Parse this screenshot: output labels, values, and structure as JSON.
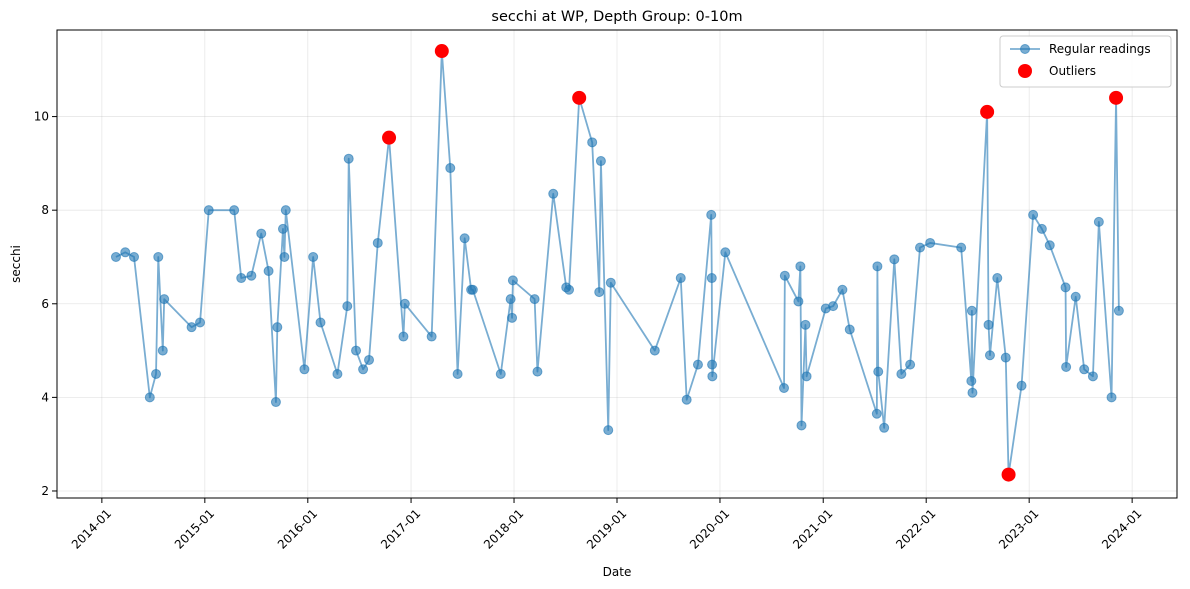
{
  "chart_data": {
    "type": "scatter",
    "title": "secchi at WP, Depth Group: 0-10m",
    "xlabel": "Date",
    "ylabel": "secchi",
    "xlim": [
      "2013-07-26",
      "2024-06-08"
    ],
    "ylim": [
      1.85,
      11.85
    ],
    "x_ticks": [
      "2014-01",
      "2015-01",
      "2016-01",
      "2017-01",
      "2018-01",
      "2019-01",
      "2020-01",
      "2021-01",
      "2022-01",
      "2023-01",
      "2024-01"
    ],
    "y_ticks": [
      2,
      4,
      6,
      8,
      10
    ],
    "grid": true,
    "legend": "top-right",
    "colors": {
      "regular": "#1f77b4",
      "outlier": "#ff0000"
    },
    "series": [
      {
        "name": "Regular readings",
        "style": "line-marker",
        "points": [
          [
            "2014-02-20",
            7.0
          ],
          [
            "2014-03-25",
            7.1
          ],
          [
            "2014-04-25",
            7.0
          ],
          [
            "2014-06-20",
            4.0
          ],
          [
            "2014-07-12",
            4.5
          ],
          [
            "2014-07-20",
            7.0
          ],
          [
            "2014-08-05",
            5.0
          ],
          [
            "2014-08-10",
            6.1
          ],
          [
            "2014-11-15",
            5.5
          ],
          [
            "2014-12-15",
            5.6
          ],
          [
            "2015-01-15",
            8.0
          ],
          [
            "2015-04-15",
            8.0
          ],
          [
            "2015-05-10",
            6.55
          ],
          [
            "2015-06-15",
            6.6
          ],
          [
            "2015-07-20",
            7.5
          ],
          [
            "2015-08-15",
            6.7
          ],
          [
            "2015-09-10",
            3.9
          ],
          [
            "2015-09-15",
            5.5
          ],
          [
            "2015-10-05",
            7.6
          ],
          [
            "2015-10-10",
            7.0
          ],
          [
            "2015-10-15",
            8.0
          ],
          [
            "2015-12-20",
            4.6
          ],
          [
            "2016-01-20",
            7.0
          ],
          [
            "2016-02-15",
            5.6
          ],
          [
            "2016-04-15",
            4.5
          ],
          [
            "2016-05-20",
            5.95
          ],
          [
            "2016-05-25",
            9.1
          ],
          [
            "2016-06-20",
            5.0
          ],
          [
            "2016-07-15",
            4.6
          ],
          [
            "2016-08-05",
            4.8
          ],
          [
            "2016-09-05",
            7.3
          ],
          [
            "2016-10-15",
            9.55
          ],
          [
            "2016-12-05",
            5.3
          ],
          [
            "2016-12-10",
            6.0
          ],
          [
            "2017-03-15",
            5.3
          ],
          [
            "2017-04-20",
            11.4
          ],
          [
            "2017-05-20",
            8.9
          ],
          [
            "2017-06-15",
            4.5
          ],
          [
            "2017-07-10",
            7.4
          ],
          [
            "2017-08-02",
            6.3
          ],
          [
            "2017-08-08",
            6.3
          ],
          [
            "2017-11-15",
            4.5
          ],
          [
            "2017-12-20",
            6.1
          ],
          [
            "2017-12-25",
            5.7
          ],
          [
            "2017-12-28",
            6.5
          ],
          [
            "2018-03-15",
            6.1
          ],
          [
            "2018-03-25",
            4.55
          ],
          [
            "2018-05-20",
            8.35
          ],
          [
            "2018-07-05",
            6.35
          ],
          [
            "2018-07-15",
            6.3
          ],
          [
            "2018-08-20",
            10.4
          ],
          [
            "2018-10-05",
            9.45
          ],
          [
            "2018-10-30",
            6.25
          ],
          [
            "2018-11-05",
            9.05
          ],
          [
            "2018-12-01",
            3.3
          ],
          [
            "2018-12-10",
            6.45
          ],
          [
            "2019-05-15",
            5.0
          ],
          [
            "2019-08-15",
            6.55
          ],
          [
            "2019-09-05",
            3.95
          ],
          [
            "2019-10-15",
            4.7
          ],
          [
            "2019-12-01",
            7.9
          ],
          [
            "2019-12-03",
            6.55
          ],
          [
            "2019-12-04",
            4.7
          ],
          [
            "2019-12-05",
            4.45
          ],
          [
            "2020-01-20",
            7.1
          ],
          [
            "2020-08-15",
            4.2
          ],
          [
            "2020-08-18",
            6.6
          ],
          [
            "2020-10-05",
            6.05
          ],
          [
            "2020-10-12",
            6.8
          ],
          [
            "2020-10-16",
            3.4
          ],
          [
            "2020-10-30",
            5.55
          ],
          [
            "2020-11-03",
            4.45
          ],
          [
            "2021-01-10",
            5.9
          ],
          [
            "2021-02-05",
            5.95
          ],
          [
            "2021-03-10",
            6.3
          ],
          [
            "2021-04-05",
            5.45
          ],
          [
            "2021-07-10",
            3.65
          ],
          [
            "2021-07-12",
            6.8
          ],
          [
            "2021-07-15",
            4.55
          ],
          [
            "2021-08-05",
            3.35
          ],
          [
            "2021-09-10",
            6.95
          ],
          [
            "2021-10-05",
            4.5
          ],
          [
            "2021-11-05",
            4.7
          ],
          [
            "2021-12-10",
            7.2
          ],
          [
            "2022-01-15",
            7.3
          ],
          [
            "2022-05-05",
            7.2
          ],
          [
            "2022-06-10",
            4.35
          ],
          [
            "2022-06-12",
            5.85
          ],
          [
            "2022-06-14",
            4.1
          ],
          [
            "2022-08-05",
            10.1
          ],
          [
            "2022-08-10",
            5.55
          ],
          [
            "2022-08-15",
            4.9
          ],
          [
            "2022-09-10",
            6.55
          ],
          [
            "2022-10-10",
            4.85
          ],
          [
            "2022-10-20",
            2.35
          ],
          [
            "2022-12-05",
            4.25
          ],
          [
            "2023-01-15",
            7.9
          ],
          [
            "2023-02-15",
            7.6
          ],
          [
            "2023-03-15",
            7.25
          ],
          [
            "2023-05-10",
            6.35
          ],
          [
            "2023-05-12",
            4.65
          ],
          [
            "2023-06-15",
            6.15
          ],
          [
            "2023-07-15",
            4.6
          ],
          [
            "2023-08-15",
            4.45
          ],
          [
            "2023-09-05",
            7.75
          ],
          [
            "2023-10-20",
            4.0
          ],
          [
            "2023-11-05",
            10.4
          ],
          [
            "2023-11-15",
            5.85
          ]
        ]
      },
      {
        "name": "Outliers",
        "style": "marker",
        "points": [
          [
            "2016-10-15",
            9.55
          ],
          [
            "2017-04-20",
            11.4
          ],
          [
            "2018-08-20",
            10.4
          ],
          [
            "2022-08-05",
            10.1
          ],
          [
            "2022-10-20",
            2.35
          ],
          [
            "2023-11-05",
            10.4
          ]
        ]
      }
    ]
  }
}
